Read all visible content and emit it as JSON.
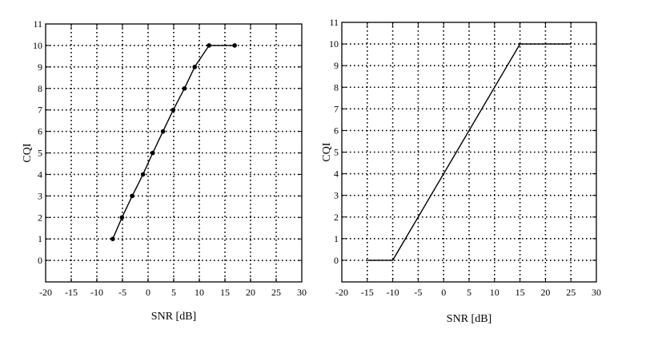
{
  "chart_data": [
    {
      "type": "line",
      "title": "",
      "xlabel": "SNR [dB]",
      "ylabel": "CQI",
      "xlim": [
        -20,
        30
      ],
      "ylim": [
        -1,
        11
      ],
      "xticks": [
        -20,
        -15,
        -10,
        -5,
        0,
        5,
        10,
        15,
        20,
        25,
        30
      ],
      "yticks": [
        0,
        1,
        2,
        3,
        4,
        5,
        6,
        7,
        8,
        9,
        10,
        11
      ],
      "grid": true,
      "markers": true,
      "series": [
        {
          "x": [
            -6.9,
            -5.1,
            -3.1,
            -1.0,
            0.9,
            2.9,
            4.9,
            7.1,
            9.1,
            11.9,
            16.9
          ],
          "y": [
            1,
            2,
            3,
            4,
            5,
            6,
            7,
            8,
            9,
            10,
            10
          ]
        }
      ]
    },
    {
      "type": "line",
      "title": "",
      "xlabel": "SNR [dB]",
      "ylabel": "CQI",
      "xlim": [
        -20,
        30
      ],
      "ylim": [
        -1,
        11
      ],
      "xticks": [
        -20,
        -15,
        -10,
        -5,
        0,
        5,
        10,
        15,
        20,
        25,
        30
      ],
      "yticks": [
        0,
        1,
        2,
        3,
        4,
        5,
        6,
        7,
        8,
        9,
        10,
        11
      ],
      "grid": true,
      "markers": false,
      "series": [
        {
          "x": [
            -15,
            -10,
            15,
            25
          ],
          "y": [
            0,
            0,
            10,
            10
          ]
        }
      ]
    }
  ]
}
